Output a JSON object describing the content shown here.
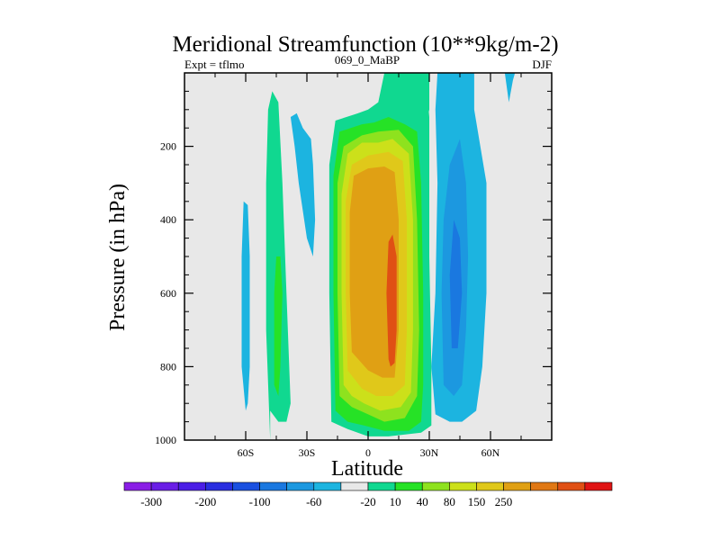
{
  "chart_data": {
    "type": "contour",
    "title": "Meridional Streamfunction (10**9kg/m-2)",
    "left_string": "Expt = tflmo",
    "center_string": "069_0_MaBP",
    "right_string": "DJF",
    "xlabel": "Latitude",
    "ylabel": "Pressure (in hPa)",
    "x_range": [
      -90,
      90
    ],
    "x_ticks": [
      -60,
      -30,
      0,
      30,
      60
    ],
    "x_tick_labels": [
      "60S",
      "30S",
      "0",
      "30N",
      "60N"
    ],
    "y_range": [
      0,
      1000
    ],
    "y_reversed": true,
    "y_ticks": [
      200,
      400,
      600,
      800,
      1000
    ],
    "y_tick_labels": [
      "200",
      "400",
      "600",
      "800",
      "1000"
    ],
    "background_color": "#e8e8e8",
    "colorbar": {
      "colors": [
        "#8a1ee6",
        "#6a1ee6",
        "#4b1ee6",
        "#2a2ee0",
        "#1a50e0",
        "#1a78e0",
        "#1c98e0",
        "#1cb4e0",
        "#e8e8e8",
        "#10d890",
        "#26e226",
        "#8ee21e",
        "#cce01a",
        "#e0c81a",
        "#e0a014",
        "#e07814",
        "#e05014",
        "#e01414"
      ],
      "labels": [
        "-300",
        "-200",
        "-100",
        "-60",
        "-20",
        "10",
        "40",
        "80",
        "150",
        "250"
      ],
      "label_boundaries": [
        1,
        3,
        5,
        7,
        9,
        10,
        11,
        12,
        13,
        14,
        15,
        16
      ]
    },
    "regions": [
      {
        "name": "sh-mid-cell-outer",
        "color_index": 9,
        "points": [
          [
            -48,
            1000
          ],
          [
            -50,
            700
          ],
          [
            -50,
            300
          ],
          [
            -49,
            100
          ],
          [
            -47,
            50
          ],
          [
            -44,
            80
          ],
          [
            -42,
            300
          ],
          [
            -40,
            600
          ],
          [
            -38,
            900
          ],
          [
            -40,
            950
          ],
          [
            -44,
            950
          ],
          [
            -48,
            920
          ]
        ]
      },
      {
        "name": "sh-mid-cell-inner",
        "color_index": 10,
        "points": [
          [
            -46,
            850
          ],
          [
            -46,
            600
          ],
          [
            -45,
            500
          ],
          [
            -43,
            500
          ],
          [
            -42,
            600
          ],
          [
            -43,
            800
          ],
          [
            -44,
            880
          ]
        ]
      },
      {
        "name": "sh-high-neg",
        "color_index": 7,
        "points": [
          [
            -60,
            920
          ],
          [
            -62,
            800
          ],
          [
            -62,
            500
          ],
          [
            -61,
            350
          ],
          [
            -59,
            360
          ],
          [
            -58,
            500
          ],
          [
            -58,
            800
          ],
          [
            -59,
            900
          ]
        ]
      },
      {
        "name": "sh-sub-neg",
        "color_index": 7,
        "points": [
          [
            -38,
            120
          ],
          [
            -36,
            200
          ],
          [
            -34,
            300
          ],
          [
            -30,
            450
          ],
          [
            -27,
            500
          ],
          [
            -26,
            400
          ],
          [
            -27,
            250
          ],
          [
            -28,
            180
          ],
          [
            -32,
            150
          ],
          [
            -35,
            110
          ]
        ]
      },
      {
        "name": "nh-polar-pos",
        "color_index": 9,
        "points": [
          [
            30,
            0
          ],
          [
            30,
            100
          ],
          [
            28,
            150
          ],
          [
            27,
            200
          ],
          [
            26,
            0
          ]
        ]
      },
      {
        "name": "nh-neg-outer",
        "color_index": 7,
        "points": [
          [
            33,
            930
          ],
          [
            31,
            800
          ],
          [
            33,
            600
          ],
          [
            34,
            300
          ],
          [
            33,
            100
          ],
          [
            34,
            0
          ],
          [
            52,
            0
          ],
          [
            52,
            100
          ],
          [
            58,
            300
          ],
          [
            58,
            600
          ],
          [
            56,
            800
          ],
          [
            53,
            920
          ],
          [
            46,
            950
          ],
          [
            40,
            950
          ]
        ]
      },
      {
        "name": "nh-neg-mid",
        "color_index": 6,
        "points": [
          [
            37,
            850
          ],
          [
            36,
            600
          ],
          [
            37,
            400
          ],
          [
            40,
            250
          ],
          [
            45,
            180
          ],
          [
            48,
            300
          ],
          [
            49,
            500
          ],
          [
            48,
            700
          ],
          [
            46,
            850
          ],
          [
            42,
            880
          ]
        ]
      },
      {
        "name": "nh-neg-core",
        "color_index": 5,
        "points": [
          [
            41,
            750
          ],
          [
            40,
            550
          ],
          [
            42,
            400
          ],
          [
            45,
            450
          ],
          [
            46,
            600
          ],
          [
            44,
            750
          ]
        ]
      },
      {
        "name": "nh-high-neg",
        "color_index": 7,
        "points": [
          [
            67,
            0
          ],
          [
            69,
            80
          ],
          [
            71,
            20
          ],
          [
            72,
            0
          ]
        ]
      },
      {
        "name": "hadley-10",
        "color_index": 9,
        "points": [
          [
            -18,
            950
          ],
          [
            -19,
            600
          ],
          [
            -19,
            250
          ],
          [
            -16,
            130
          ],
          [
            -5,
            110
          ],
          [
            0,
            100
          ],
          [
            5,
            80
          ],
          [
            8,
            0
          ],
          [
            28,
            0
          ],
          [
            30,
            120
          ],
          [
            30,
            500
          ],
          [
            31,
            800
          ],
          [
            31,
            960
          ],
          [
            26,
            980
          ],
          [
            10,
            990
          ],
          [
            0,
            990
          ],
          [
            -10,
            970
          ]
        ]
      },
      {
        "name": "hadley-40",
        "color_index": 10,
        "points": [
          [
            -16,
            920
          ],
          [
            -17,
            600
          ],
          [
            -17,
            280
          ],
          [
            -14,
            160
          ],
          [
            -3,
            140
          ],
          [
            3,
            135
          ],
          [
            10,
            120
          ],
          [
            18,
            140
          ],
          [
            24,
            160
          ],
          [
            26,
            300
          ],
          [
            27,
            600
          ],
          [
            27,
            850
          ],
          [
            26,
            950
          ],
          [
            20,
            975
          ],
          [
            8,
            975
          ],
          [
            -2,
            960
          ],
          [
            -10,
            950
          ]
        ]
      },
      {
        "name": "hadley-80",
        "color_index": 11,
        "points": [
          [
            -14,
            880
          ],
          [
            -15,
            600
          ],
          [
            -15,
            300
          ],
          [
            -12,
            200
          ],
          [
            -3,
            170
          ],
          [
            5,
            160
          ],
          [
            15,
            155
          ],
          [
            22,
            200
          ],
          [
            24,
            400
          ],
          [
            25,
            700
          ],
          [
            24,
            880
          ],
          [
            18,
            940
          ],
          [
            8,
            950
          ],
          [
            0,
            930
          ],
          [
            -8,
            910
          ]
        ]
      },
      {
        "name": "hadley-150",
        "color_index": 12,
        "points": [
          [
            -12,
            850
          ],
          [
            -13,
            600
          ],
          [
            -13,
            330
          ],
          [
            -10,
            220
          ],
          [
            -3,
            190
          ],
          [
            5,
            190
          ],
          [
            12,
            180
          ],
          [
            20,
            220
          ],
          [
            22,
            400
          ],
          [
            22,
            700
          ],
          [
            21,
            870
          ],
          [
            16,
            910
          ],
          [
            6,
            920
          ],
          [
            -2,
            900
          ],
          [
            -8,
            880
          ]
        ]
      },
      {
        "name": "hadley-250",
        "color_index": 13,
        "points": [
          [
            -10,
            810
          ],
          [
            -11,
            600
          ],
          [
            -11,
            350
          ],
          [
            -8,
            250
          ],
          [
            0,
            225
          ],
          [
            10,
            215
          ],
          [
            17,
            240
          ],
          [
            19,
            400
          ],
          [
            19,
            700
          ],
          [
            18,
            850
          ],
          [
            12,
            880
          ],
          [
            4,
            880
          ],
          [
            -3,
            860
          ]
        ]
      },
      {
        "name": "hadley-350",
        "color_index": 14,
        "points": [
          [
            -8,
            760
          ],
          [
            -9,
            600
          ],
          [
            -9,
            380
          ],
          [
            -7,
            280
          ],
          [
            0,
            260
          ],
          [
            8,
            255
          ],
          [
            13,
            270
          ],
          [
            15,
            400
          ],
          [
            15,
            700
          ],
          [
            13,
            830
          ],
          [
            7,
            830
          ],
          [
            0,
            810
          ]
        ]
      },
      {
        "name": "hadley-core",
        "color_index": 16,
        "points": [
          [
            10,
            780
          ],
          [
            9,
            600
          ],
          [
            10,
            460
          ],
          [
            12,
            440
          ],
          [
            14,
            500
          ],
          [
            14,
            700
          ],
          [
            13,
            790
          ],
          [
            11,
            800
          ]
        ]
      }
    ]
  }
}
